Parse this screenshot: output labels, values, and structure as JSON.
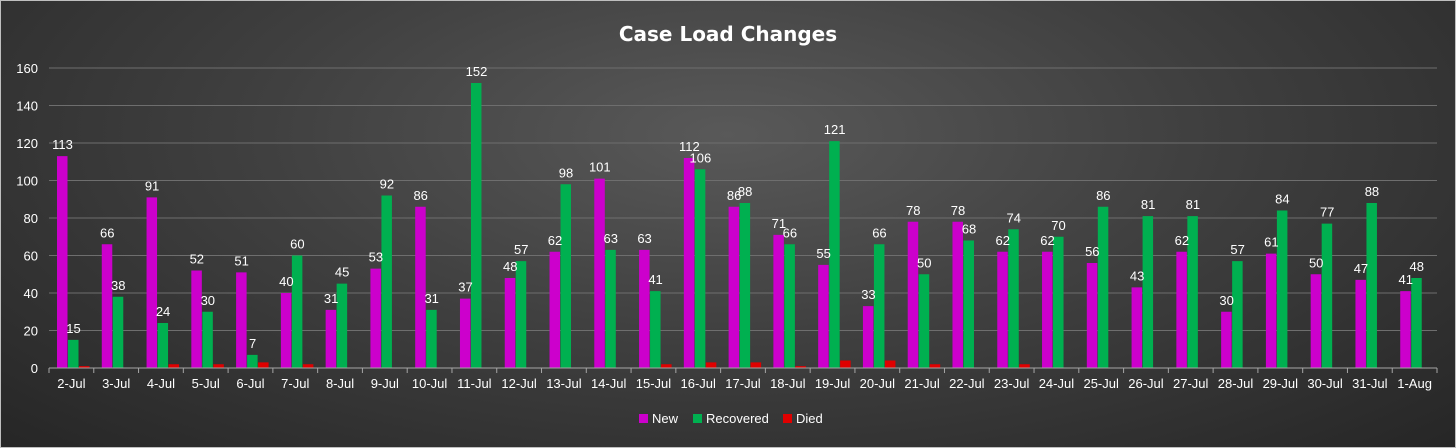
{
  "chart_data": {
    "type": "bar",
    "title": "Case Load Changes",
    "xlabel": "",
    "ylabel": "",
    "ylim": [
      0,
      160
    ],
    "yticks": [
      "0",
      "20",
      "40",
      "60",
      "80",
      "100",
      "120",
      "140",
      "160"
    ],
    "grid": true,
    "legend_position": "bottom",
    "categories": [
      "2-Jul",
      "3-Jul",
      "4-Jul",
      "5-Jul",
      "6-Jul",
      "7-Jul",
      "8-Jul",
      "9-Jul",
      "10-Jul",
      "11-Jul",
      "12-Jul",
      "13-Jul",
      "14-Jul",
      "15-Jul",
      "16-Jul",
      "17-Jul",
      "18-Jul",
      "19-Jul",
      "20-Jul",
      "21-Jul",
      "22-Jul",
      "23-Jul",
      "24-Jul",
      "25-Jul",
      "26-Jul",
      "27-Jul",
      "28-Jul",
      "29-Jul",
      "30-Jul",
      "31-Jul",
      "1-Aug"
    ],
    "series": [
      {
        "name": "New",
        "color": "#cc00cc",
        "labeled": true,
        "values": [
          113,
          66,
          91,
          52,
          51,
          40,
          31,
          53,
          86,
          37,
          48,
          62,
          101,
          63,
          112,
          86,
          71,
          55,
          33,
          78,
          78,
          62,
          62,
          56,
          43,
          62,
          30,
          61,
          50,
          47,
          41
        ]
      },
      {
        "name": "Recovered",
        "color": "#00b050",
        "labeled": true,
        "values": [
          15,
          38,
          24,
          30,
          7,
          60,
          45,
          92,
          31,
          152,
          57,
          98,
          63,
          41,
          106,
          88,
          66,
          121,
          66,
          50,
          68,
          74,
          70,
          86,
          81,
          81,
          57,
          84,
          77,
          88,
          48
        ]
      },
      {
        "name": "Died",
        "color": "#e00000",
        "labeled": false,
        "values": [
          1,
          0,
          2,
          2,
          3,
          2,
          0,
          0,
          0,
          0,
          0,
          0,
          0,
          2,
          3,
          3,
          1,
          4,
          4,
          2,
          0,
          2,
          0,
          0,
          0,
          0,
          0,
          0,
          0,
          0,
          0
        ]
      }
    ]
  }
}
